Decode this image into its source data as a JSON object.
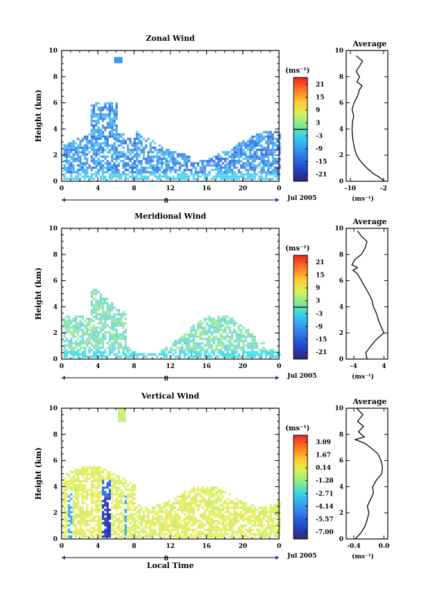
{
  "chart_data": [
    {
      "id": "zonal",
      "type": "heatmap",
      "title": "Zonal Wind",
      "ylabel": "Height (km)",
      "xlabel": "",
      "xlim": [
        0,
        24
      ],
      "ylim": [
        0,
        10
      ],
      "xticks": [
        "0",
        "4",
        "8",
        "12",
        "16",
        "20",
        "0"
      ],
      "yticks": [
        "0",
        "2",
        "4",
        "6",
        "8",
        "10"
      ],
      "date_label": "Jul 2005",
      "day_label": "8",
      "colorbar": {
        "unit": "(ms⁻¹)",
        "ticks": [
          "21",
          "15",
          "9",
          "3",
          "-3",
          "-9",
          "-15",
          "-21"
        ],
        "zero_line": true
      },
      "average": {
        "title": "Average",
        "xlabel": "(ms⁻¹)",
        "xlim": [
          -11,
          -1
        ],
        "xticks": [
          "-10",
          "-2"
        ],
        "yticks": [
          "0",
          "2",
          "4",
          "6",
          "8",
          "10"
        ],
        "profile": [
          [
            0,
            -1.8
          ],
          [
            0.3,
            -3
          ],
          [
            0.6,
            -4.5
          ],
          [
            1,
            -6
          ],
          [
            1.5,
            -7.5
          ],
          [
            2,
            -8.5
          ],
          [
            2.5,
            -9
          ],
          [
            3,
            -9.3
          ],
          [
            3.5,
            -9.5
          ],
          [
            4,
            -9.6
          ],
          [
            4.5,
            -9.5
          ],
          [
            5,
            -9.2
          ],
          [
            5.5,
            -9.6
          ],
          [
            6,
            -9.1
          ],
          [
            6.5,
            -8.3
          ],
          [
            7,
            -7.8
          ],
          [
            7.3,
            -7.2
          ],
          [
            7.6,
            -8.4
          ],
          [
            8,
            -7.8
          ],
          [
            8.4,
            -8.6
          ],
          [
            8.8,
            -7.8
          ],
          [
            9.2,
            -7.1
          ],
          [
            9.6,
            -8.6
          ]
        ]
      }
    },
    {
      "id": "meridional",
      "type": "heatmap",
      "title": "Meridional Wind",
      "ylabel": "Height (km)",
      "xlabel": "",
      "xlim": [
        0,
        24
      ],
      "ylim": [
        0,
        10
      ],
      "xticks": [
        "0",
        "4",
        "8",
        "12",
        "16",
        "20",
        "0"
      ],
      "yticks": [
        "0",
        "2",
        "4",
        "6",
        "8",
        "10"
      ],
      "date_label": "Jul 2005",
      "day_label": "8",
      "colorbar": {
        "unit": "(ms⁻¹)",
        "ticks": [
          "21",
          "15",
          "9",
          "3",
          "-3",
          "-9",
          "-15",
          "-21"
        ],
        "zero_line": true
      },
      "average": {
        "title": "Average",
        "xlabel": "(ms⁻¹)",
        "xlim": [
          -6,
          5
        ],
        "xticks": [
          "-4",
          "4"
        ],
        "yticks": [
          "0",
          "2",
          "4",
          "6",
          "8",
          "10"
        ],
        "profile": [
          [
            0,
            -0.5
          ],
          [
            0.5,
            -0.8
          ],
          [
            1,
            0.5
          ],
          [
            1.5,
            2
          ],
          [
            2,
            4
          ],
          [
            2.5,
            3.2
          ],
          [
            3,
            2.5
          ],
          [
            3.5,
            2
          ],
          [
            4,
            1.2
          ],
          [
            4.5,
            0.8
          ],
          [
            5,
            0
          ],
          [
            5.5,
            -1
          ],
          [
            6,
            -2
          ],
          [
            6.5,
            -3
          ],
          [
            6.8,
            -4.2
          ],
          [
            7,
            -3
          ],
          [
            7.2,
            -4.5
          ],
          [
            7.6,
            -3.8
          ],
          [
            8,
            -2
          ],
          [
            8.5,
            -1
          ],
          [
            9,
            -0.5
          ],
          [
            9.4,
            -2
          ],
          [
            9.8,
            -3
          ]
        ]
      }
    },
    {
      "id": "vertical",
      "type": "heatmap",
      "title": "Vertical Wind",
      "ylabel": "Height (km)",
      "xlabel": "Local Time",
      "xlim": [
        0,
        24
      ],
      "ylim": [
        0,
        10
      ],
      "xticks": [
        "0",
        "4",
        "8",
        "12",
        "16",
        "20",
        "0"
      ],
      "yticks": [
        "0",
        "2",
        "4",
        "6",
        "8",
        "10"
      ],
      "date_label": "Jul 2005",
      "day_label": "8",
      "colorbar": {
        "unit": "(ms⁻¹)",
        "ticks": [
          "3.09",
          "1.67",
          "0.14",
          "-1.28",
          "-2.71",
          "-4.14",
          "-5.57",
          "-7.00"
        ],
        "zero_line": false
      },
      "average": {
        "title": "Average",
        "xlabel": "(ms⁻¹)",
        "xlim": [
          -0.5,
          0.05
        ],
        "xticks": [
          "-0.4",
          "0.0"
        ],
        "yticks": [
          "0",
          "2",
          "4",
          "6",
          "8",
          "10"
        ],
        "profile": [
          [
            0,
            -0.38
          ],
          [
            0.5,
            -0.3
          ],
          [
            1,
            -0.25
          ],
          [
            1.5,
            -0.22
          ],
          [
            2,
            -0.2
          ],
          [
            2.5,
            -0.22
          ],
          [
            3,
            -0.18
          ],
          [
            3.5,
            -0.14
          ],
          [
            4,
            -0.15
          ],
          [
            4.5,
            -0.1
          ],
          [
            5,
            -0.03
          ],
          [
            5.5,
            -0.02
          ],
          [
            6,
            -0.04
          ],
          [
            6.5,
            -0.08
          ],
          [
            7,
            -0.18
          ],
          [
            7.3,
            -0.25
          ],
          [
            7.6,
            -0.38
          ],
          [
            7.8,
            -0.26
          ],
          [
            8.2,
            -0.34
          ],
          [
            8.6,
            -0.27
          ],
          [
            9,
            -0.35
          ],
          [
            9.5,
            -0.28
          ],
          [
            10,
            -0.36
          ]
        ]
      }
    }
  ]
}
